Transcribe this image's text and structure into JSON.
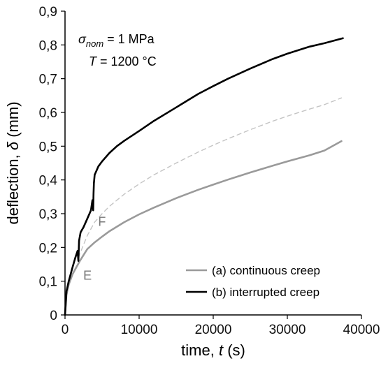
{
  "chart_data": {
    "type": "line",
    "xlabel": "time, t (s)",
    "ylabel": "deflection, δ (mm)",
    "xlim": [
      0,
      40000
    ],
    "ylim": [
      0,
      0.9
    ],
    "x_ticks": [
      "0",
      "10000",
      "20000",
      "30000",
      "40000"
    ],
    "y_ticks": [
      "0",
      "0,1",
      "0,2",
      "0,3",
      "0,4",
      "0,5",
      "0,6",
      "0,7",
      "0,8",
      "0,9"
    ],
    "grid": false,
    "legend_position": "bottom-right",
    "annotation": {
      "sigma_symbol": "σ",
      "sigma_subscript": "nom",
      "sigma_value": " = 1 MPa",
      "temperature": "T = 1200 °C"
    },
    "point_labels": [
      {
        "text": "E",
        "x": 1900,
        "y": 0.16
      },
      {
        "text": "F",
        "x": 3900,
        "y": 0.32
      }
    ],
    "series": [
      {
        "name": "(a) continuous creep",
        "color": "#9a9a9a",
        "dashed": false,
        "x": [
          0,
          200,
          500,
          1000,
          1500,
          2000,
          3000,
          4000,
          5000,
          6000,
          8000,
          10000,
          12000,
          15000,
          18000,
          20000,
          22000,
          25000,
          28000,
          30000,
          33000,
          35000,
          37300
        ],
        "y": [
          0.0,
          0.06,
          0.09,
          0.12,
          0.14,
          0.16,
          0.195,
          0.215,
          0.232,
          0.248,
          0.275,
          0.298,
          0.318,
          0.346,
          0.371,
          0.386,
          0.401,
          0.422,
          0.442,
          0.455,
          0.473,
          0.487,
          0.515
        ]
      },
      {
        "name": "",
        "color": "#c4c4c4",
        "dashed": true,
        "x": [
          1800,
          3000,
          4000,
          5000,
          6000,
          8000,
          10000,
          12000,
          15000,
          18000,
          20000,
          22000,
          25000,
          28000,
          30000,
          33000,
          35000,
          37300
        ],
        "y": [
          0.17,
          0.235,
          0.275,
          0.3,
          0.322,
          0.358,
          0.388,
          0.415,
          0.45,
          0.483,
          0.503,
          0.522,
          0.549,
          0.574,
          0.589,
          0.61,
          0.623,
          0.643
        ]
      },
      {
        "name": "(b) interrupted creep",
        "color": "#000000",
        "dashed": false,
        "x": [
          0,
          200,
          500,
          1000,
          1400,
          1700,
          1800,
          1900,
          2100,
          2500,
          3000,
          3500,
          3700,
          3800,
          3850,
          3900,
          4000,
          4200,
          4500,
          5000,
          6000,
          7000,
          8000,
          10000,
          12000,
          15000,
          18000,
          20000,
          22000,
          25000,
          28000,
          30000,
          33000,
          35000,
          37500
        ],
        "y": [
          0.0,
          0.07,
          0.1,
          0.14,
          0.17,
          0.19,
          0.16,
          0.22,
          0.245,
          0.26,
          0.285,
          0.31,
          0.34,
          0.31,
          0.36,
          0.39,
          0.415,
          0.425,
          0.44,
          0.455,
          0.48,
          0.5,
          0.516,
          0.545,
          0.575,
          0.615,
          0.655,
          0.678,
          0.7,
          0.73,
          0.758,
          0.774,
          0.795,
          0.805,
          0.82
        ]
      }
    ]
  }
}
